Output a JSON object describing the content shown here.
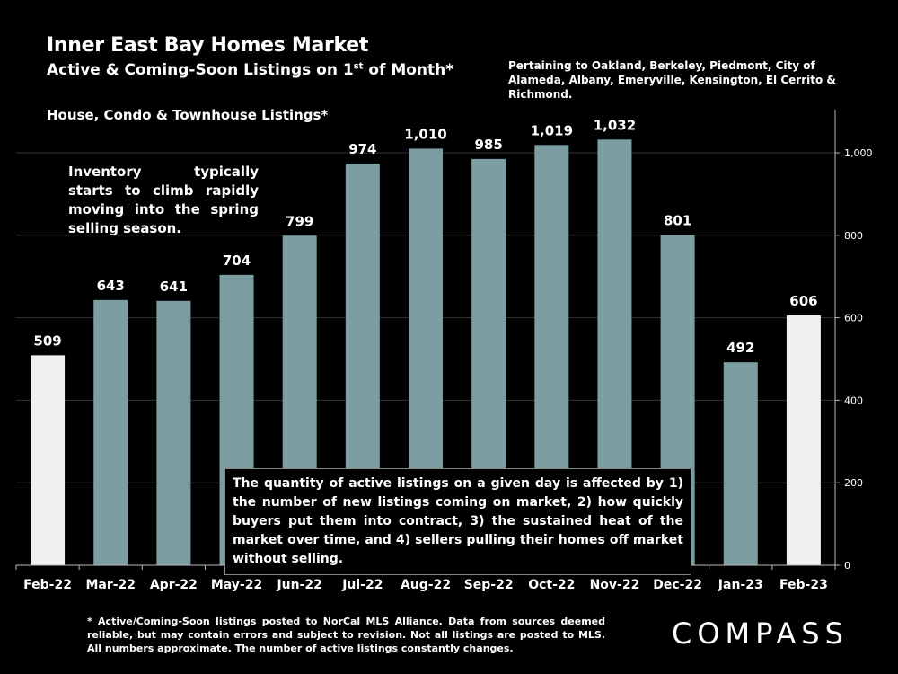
{
  "header": {
    "title": "Inner East Bay Homes Market",
    "subtitle_prefix": "Active & Coming-Soon Listings on 1",
    "subtitle_sup": "st",
    "subtitle_suffix": " of Month*",
    "pertaining": "Pertaining to Oakland, Berkeley, Piedmont, City of Alameda, Albany, Emeryville, Kensington, El Cerrito & Richmond."
  },
  "chart_subtitle": "House, Condo & Townhouse Listings*",
  "annotations": {
    "spring": "Inventory typically starts to climb rapidly moving into the spring selling season.",
    "box": "The quantity of active listings on a given day is affected by 1) the number of new listings coming on market, 2) how quickly buyers put them into contract, 3) the sustained heat of the market over time, and 4) sellers pulling their homes off market without selling."
  },
  "footnote": "* Active/Coming-Soon listings posted to NorCal MLS Alliance. Data from sources deemed reliable, but may contain errors and subject to revision. Not all listings are posted to MLS. All numbers approximate. The number of active listings constantly changes.",
  "brand": {
    "logo_text": "COMPASS"
  },
  "colors": {
    "background": "#000000",
    "bar": "#7c9ea3",
    "highlight_bar": "#f0f0f0",
    "gridline": "#333333"
  },
  "chart_data": {
    "type": "bar",
    "title": "Active & Coming-Soon Listings on 1st of Month",
    "categories": [
      "Feb-22",
      "Mar-22",
      "Apr-22",
      "May-22",
      "Jun-22",
      "Jul-22",
      "Aug-22",
      "Sep-22",
      "Oct-22",
      "Nov-22",
      "Dec-22",
      "Jan-23",
      "Feb-23"
    ],
    "values": [
      509,
      643,
      641,
      704,
      799,
      974,
      1010,
      985,
      1019,
      1032,
      801,
      492,
      606
    ],
    "value_labels": [
      "509",
      "643",
      "641",
      "704",
      "799",
      "974",
      "1,010",
      "985",
      "1,019",
      "1,032",
      "801",
      "492",
      "606"
    ],
    "highlight": [
      true,
      false,
      false,
      false,
      false,
      false,
      false,
      false,
      false,
      false,
      false,
      false,
      true
    ],
    "ylim": [
      0,
      1100
    ],
    "yticks": [
      0,
      200,
      400,
      600,
      800,
      1000
    ],
    "ytick_labels": [
      "0",
      "200",
      "400",
      "600",
      "800",
      "1,000"
    ],
    "y_axis_side": "right",
    "grid": true,
    "xlabel": "",
    "ylabel": ""
  }
}
